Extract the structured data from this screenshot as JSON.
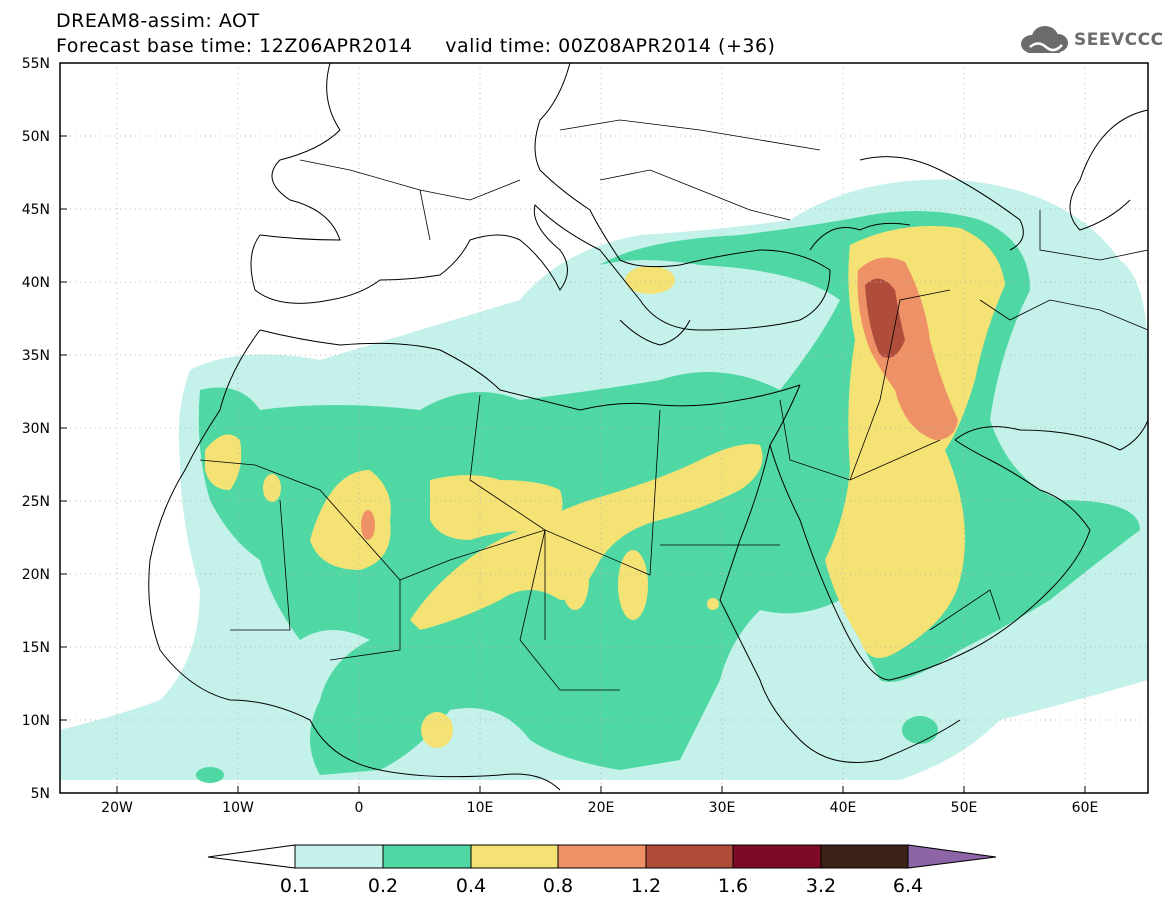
{
  "title": {
    "line1": "DREAM8-assim: AOT",
    "line2": "Forecast base time: 12Z06APR2014     valid time: 00Z08APR2014 (+36)"
  },
  "logo": {
    "text": "SEEVCCC",
    "icon": "cloud-icon"
  },
  "map": {
    "lat_labels": [
      "55N",
      "50N",
      "45N",
      "40N",
      "35N",
      "30N",
      "25N",
      "20N",
      "15N",
      "10N",
      "5N"
    ],
    "lon_labels": [
      "20W",
      "10W",
      "0",
      "10E",
      "20E",
      "30E",
      "40E",
      "50E",
      "60E"
    ]
  },
  "colorbar": {
    "levels": [
      "0.1",
      "0.2",
      "0.4",
      "0.8",
      "1.2",
      "1.6",
      "3.2",
      "6.4"
    ],
    "colors": [
      "#ffffff",
      "#c4f1ea",
      "#4fd8a4",
      "#f5e274",
      "#ef9166",
      "#b04c3a",
      "#7d0a26",
      "#3c2216",
      "#8d64a5"
    ]
  }
}
